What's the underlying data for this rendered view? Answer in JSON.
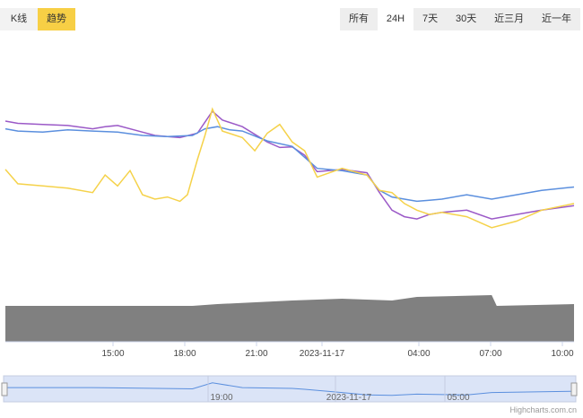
{
  "view_toggle": {
    "kline_label": "K线",
    "trend_label": "趋势",
    "active": "trend",
    "active_color": "#f7cf45"
  },
  "range_buttons": [
    {
      "label": "所有",
      "active": false
    },
    {
      "label": "24H",
      "active": true
    },
    {
      "label": "7天",
      "active": false
    },
    {
      "label": "30天",
      "active": false
    },
    {
      "label": "近三月",
      "active": false
    },
    {
      "label": "近一年",
      "active": false
    }
  ],
  "credit": "Highcharts.com.cn",
  "chart_data": {
    "type": "line",
    "x_ticks": [
      "15:00",
      "18:00",
      "21:00",
      "2023-11-17",
      "04:00",
      "07:00",
      "10:00"
    ],
    "navigator_labels": [
      "19:00",
      "2023-11-17",
      "05:00"
    ],
    "x_range_hours": [
      11.5,
      34.3
    ],
    "series": [
      {
        "color": "#9b59c7",
        "points": [
          [
            11.5,
            0.755
          ],
          [
            12,
            0.745
          ],
          [
            13,
            0.74
          ],
          [
            14,
            0.735
          ],
          [
            15,
            0.72
          ],
          [
            15.5,
            0.73
          ],
          [
            16,
            0.735
          ],
          [
            17,
            0.705
          ],
          [
            17.5,
            0.69
          ],
          [
            18,
            0.685
          ],
          [
            18.5,
            0.68
          ],
          [
            19.2,
            0.7
          ],
          [
            19.8,
            0.8
          ],
          [
            20.2,
            0.76
          ],
          [
            21,
            0.73
          ],
          [
            22,
            0.66
          ],
          [
            22.5,
            0.635
          ],
          [
            23,
            0.638
          ],
          [
            23.5,
            0.6
          ],
          [
            24,
            0.525
          ],
          [
            25,
            0.535
          ],
          [
            26,
            0.52
          ],
          [
            26.5,
            0.43
          ],
          [
            27,
            0.35
          ],
          [
            27.5,
            0.32
          ],
          [
            28,
            0.31
          ],
          [
            28.5,
            0.33
          ],
          [
            29,
            0.34
          ],
          [
            30,
            0.35
          ],
          [
            31,
            0.31
          ],
          [
            32,
            0.33
          ],
          [
            33,
            0.35
          ],
          [
            34.3,
            0.37
          ]
        ]
      },
      {
        "color": "#5b8fde",
        "points": [
          [
            11.5,
            0.72
          ],
          [
            12,
            0.71
          ],
          [
            13,
            0.705
          ],
          [
            14,
            0.715
          ],
          [
            15,
            0.71
          ],
          [
            16,
            0.705
          ],
          [
            17,
            0.69
          ],
          [
            18,
            0.685
          ],
          [
            19,
            0.69
          ],
          [
            19.5,
            0.72
          ],
          [
            20,
            0.73
          ],
          [
            20.5,
            0.715
          ],
          [
            21,
            0.71
          ],
          [
            22,
            0.665
          ],
          [
            23,
            0.64
          ],
          [
            24,
            0.54
          ],
          [
            25,
            0.53
          ],
          [
            26,
            0.51
          ],
          [
            26.5,
            0.44
          ],
          [
            27,
            0.41
          ],
          [
            27.5,
            0.4
          ],
          [
            28,
            0.39
          ],
          [
            28.5,
            0.395
          ],
          [
            29,
            0.4
          ],
          [
            30,
            0.42
          ],
          [
            31,
            0.4
          ],
          [
            32,
            0.42
          ],
          [
            33,
            0.44
          ],
          [
            34.3,
            0.455
          ]
        ]
      },
      {
        "color": "#f5d24a",
        "points": [
          [
            11.5,
            0.535
          ],
          [
            12,
            0.47
          ],
          [
            13,
            0.46
          ],
          [
            14,
            0.45
          ],
          [
            15,
            0.43
          ],
          [
            15.5,
            0.51
          ],
          [
            16,
            0.46
          ],
          [
            16.5,
            0.53
          ],
          [
            17,
            0.42
          ],
          [
            17.5,
            0.4
          ],
          [
            18,
            0.41
          ],
          [
            18.5,
            0.39
          ],
          [
            18.8,
            0.42
          ],
          [
            19.2,
            0.58
          ],
          [
            19.5,
            0.69
          ],
          [
            19.8,
            0.81
          ],
          [
            20.2,
            0.71
          ],
          [
            21,
            0.68
          ],
          [
            21.5,
            0.62
          ],
          [
            22,
            0.7
          ],
          [
            22.5,
            0.74
          ],
          [
            23,
            0.66
          ],
          [
            23.5,
            0.62
          ],
          [
            24,
            0.5
          ],
          [
            25,
            0.54
          ],
          [
            26,
            0.51
          ],
          [
            26.5,
            0.44
          ],
          [
            27,
            0.43
          ],
          [
            27.5,
            0.38
          ],
          [
            28,
            0.35
          ],
          [
            28.5,
            0.33
          ],
          [
            29,
            0.34
          ],
          [
            30,
            0.32
          ],
          [
            31,
            0.27
          ],
          [
            32,
            0.3
          ],
          [
            33,
            0.35
          ],
          [
            34.3,
            0.38
          ]
        ]
      }
    ],
    "volume": {
      "color": "#808080",
      "points": [
        [
          11.5,
          0.2
        ],
        [
          15,
          0.2
        ],
        [
          19,
          0.2
        ],
        [
          20,
          0.21
        ],
        [
          23,
          0.23
        ],
        [
          25,
          0.24
        ],
        [
          27,
          0.23
        ],
        [
          28,
          0.25
        ],
        [
          31,
          0.26
        ],
        [
          31.2,
          0.2
        ],
        [
          34.3,
          0.21
        ]
      ]
    },
    "navigator": {
      "color": "#5b8fde",
      "fill": "#dbe4f7",
      "points": [
        [
          11.5,
          0.55
        ],
        [
          15,
          0.55
        ],
        [
          19,
          0.5
        ],
        [
          19.8,
          0.75
        ],
        [
          21,
          0.55
        ],
        [
          23,
          0.52
        ],
        [
          23.5,
          0.48
        ],
        [
          25,
          0.35
        ],
        [
          26,
          0.25
        ],
        [
          27,
          0.23
        ],
        [
          28,
          0.28
        ],
        [
          30,
          0.25
        ],
        [
          31,
          0.35
        ],
        [
          34.3,
          0.4
        ]
      ]
    }
  }
}
